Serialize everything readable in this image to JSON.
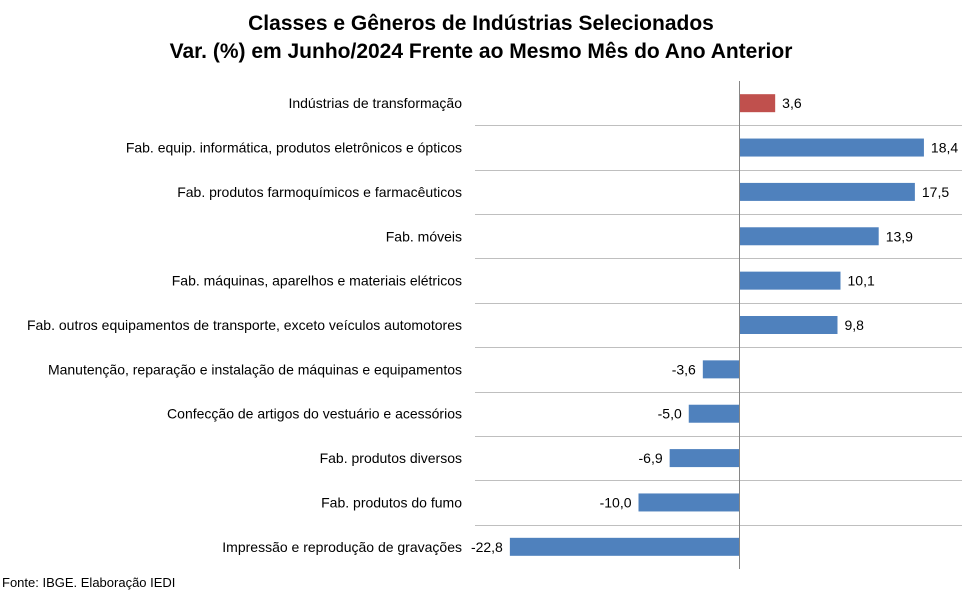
{
  "chart_data": {
    "type": "bar",
    "orientation": "horizontal",
    "title": "Classes e Gêneros de Indústrias Selecionados",
    "subtitle": "Var. (%) em Junho/2024 Frente ao Mesmo Mês do Ano Anterior",
    "categories": [
      "Indústrias de transformação",
      "Fab. equip. informática, produtos eletrônicos e ópticos",
      "Fab. produtos farmoquímicos e farmacêuticos",
      "Fab. móveis",
      "Fab. máquinas, aparelhos e materiais elétricos",
      "Fab. outros equipamentos de transporte, exceto veículos automotores",
      "Manutenção, reparação e instalação de máquinas e equipamentos",
      "Confecção de artigos do vestuário e acessórios",
      "Fab. produtos diversos",
      "Fab. produtos do fumo",
      "Impressão e reprodução de gravações"
    ],
    "values": [
      3.6,
      18.4,
      17.5,
      13.9,
      10.1,
      9.8,
      -3.6,
      -5.0,
      -6.9,
      -10.0,
      -22.8
    ],
    "value_labels": [
      "3,6",
      "18,4",
      "17,5",
      "13,9",
      "10,1",
      "9,8",
      "-3,6",
      "-5,0",
      "-6,9",
      "-10,0",
      "-22,8"
    ],
    "highlight_index": 0,
    "colors": {
      "default": "#4f81bd",
      "highlight": "#c0504d",
      "grid": "#bfbfbf",
      "axis": "#868686"
    },
    "grid": true,
    "legend": "none"
  },
  "source": "Fonte: IBGE. Elaboração IEDI"
}
